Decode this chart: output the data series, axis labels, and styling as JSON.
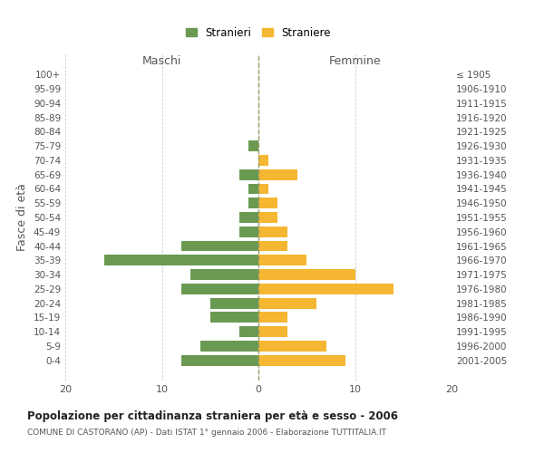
{
  "age_groups": [
    "0-4",
    "5-9",
    "10-14",
    "15-19",
    "20-24",
    "25-29",
    "30-34",
    "35-39",
    "40-44",
    "45-49",
    "50-54",
    "55-59",
    "60-64",
    "65-69",
    "70-74",
    "75-79",
    "80-84",
    "85-89",
    "90-94",
    "95-99",
    "100+"
  ],
  "birth_years": [
    "2001-2005",
    "1996-2000",
    "1991-1995",
    "1986-1990",
    "1981-1985",
    "1976-1980",
    "1971-1975",
    "1966-1970",
    "1961-1965",
    "1956-1960",
    "1951-1955",
    "1946-1950",
    "1941-1945",
    "1936-1940",
    "1931-1935",
    "1926-1930",
    "1921-1925",
    "1916-1920",
    "1911-1915",
    "1906-1910",
    "≤ 1905"
  ],
  "maschi": [
    8,
    6,
    2,
    5,
    5,
    8,
    7,
    16,
    8,
    2,
    2,
    1,
    1,
    2,
    0,
    1,
    0,
    0,
    0,
    0,
    0
  ],
  "femmine": [
    9,
    7,
    3,
    3,
    6,
    14,
    10,
    5,
    3,
    3,
    2,
    2,
    1,
    4,
    1,
    0,
    0,
    0,
    0,
    0,
    0
  ],
  "maschi_color": "#6a9a52",
  "femmine_color": "#f5b731",
  "background_color": "#ffffff",
  "grid_color": "#cccccc",
  "title": "Popolazione per cittadinanza straniera per età e sesso - 2006",
  "subtitle": "COMUNE DI CASTORANO (AP) - Dati ISTAT 1° gennaio 2006 - Elaborazione TUTTITALIA.IT",
  "ylabel_left": "Fasce di età",
  "xlabel_maschi": "Maschi",
  "xlabel_femmine": "Femmine",
  "legend_maschi": "Stranieri",
  "legend_femmine": "Straniere",
  "xlim": 20,
  "bar_height": 0.75
}
